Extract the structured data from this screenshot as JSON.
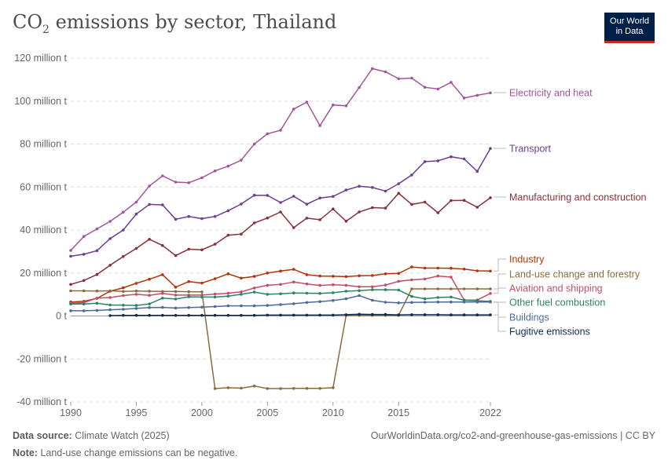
{
  "header": {
    "title_main": "CO",
    "title_sub": "2",
    "title_rest": " emissions by sector, Thailand",
    "logo_line1": "Our World",
    "logo_line2": "in Data"
  },
  "footer": {
    "source_label": "Data source:",
    "source_value": "Climate Watch (2025)",
    "note_label": "Note:",
    "note_value": "Land-use change emissions can be negative.",
    "url_license": "OurWorldinData.org/co2-and-greenhouse-gas-emissions | CC BY"
  },
  "chart_data": {
    "type": "line",
    "title": "CO₂ emissions by sector, Thailand",
    "ylim": [
      -40,
      120
    ],
    "xlim": [
      1990,
      2022
    ],
    "y_ticks": [
      -40,
      -20,
      0,
      20,
      40,
      60,
      80,
      100,
      120
    ],
    "y_tick_labels": [
      "-40 million t",
      "-20 million t",
      "0 t",
      "20 million t",
      "40 million t",
      "60 million t",
      "80 million t",
      "100 million t",
      "120 million t"
    ],
    "x_ticks": [
      1990,
      1995,
      2000,
      2005,
      2010,
      2015,
      2022
    ],
    "x_tick_labels": [
      "1990",
      "1995",
      "2000",
      "2005",
      "2010",
      "2015",
      "2022"
    ],
    "grid": "horizontal dashed",
    "legend": "line-end labels on right",
    "series": [
      {
        "name": "Electricity and heat",
        "color": "#a2559c",
        "start": 1990,
        "values": [
          30.5,
          37,
          40.5,
          44,
          48.3,
          53,
          60.5,
          65.2,
          62.3,
          62,
          64.3,
          67.5,
          69.7,
          72.5,
          80,
          84.8,
          86.4,
          96.3,
          99.5,
          88.6,
          98.2,
          97.8,
          106.3,
          115.1,
          113.6,
          110.4,
          110.7,
          106.4,
          105.6,
          108.7,
          101.4,
          102.7,
          103.8
        ]
      },
      {
        "name": "Transport",
        "color": "#6d3e91",
        "start": 1990,
        "values": [
          27.8,
          28.7,
          30.4,
          36,
          40,
          47.4,
          51.9,
          51.7,
          45,
          46.3,
          45.3,
          46.3,
          49,
          52.1,
          56.2,
          56.1,
          52.8,
          55.7,
          52,
          54.9,
          55.6,
          58.6,
          60.4,
          59.8,
          58.1,
          61.5,
          65.6,
          71.8,
          72.2,
          74.1,
          73.1,
          67.3,
          77.9
        ]
      },
      {
        "name": "Manufacturing and construction",
        "color": "#883039",
        "start": 1990,
        "values": [
          14.7,
          16.5,
          19.3,
          23.6,
          27.7,
          31.4,
          35.7,
          32.8,
          28.1,
          31.1,
          30.8,
          33.4,
          37.6,
          38.1,
          43.3,
          45.6,
          48.4,
          41.1,
          45.5,
          44.8,
          49.8,
          44.1,
          48.4,
          50.4,
          50.2,
          57.1,
          51.9,
          53,
          48,
          53.7,
          53.8,
          50.6,
          55
        ]
      },
      {
        "name": "Industry",
        "color": "#b13507",
        "start": 1990,
        "values": [
          6.5,
          6.8,
          8.2,
          11.5,
          13.1,
          15.2,
          17.1,
          19.2,
          13.4,
          16,
          15.3,
          17.3,
          19.6,
          17.6,
          18.4,
          20,
          20.9,
          21.7,
          19.2,
          18.6,
          18.5,
          18.3,
          18.7,
          18.8,
          19.6,
          19.8,
          22.8,
          22.3,
          22.3,
          22.2,
          21.8,
          21,
          20.9
        ]
      },
      {
        "name": "Land-use change and forestry",
        "color": "#8c6c3d",
        "start": 1990,
        "values": [
          11.7,
          11.7,
          11.6,
          11.7,
          11.4,
          11.6,
          11.5,
          11.4,
          11.4,
          11.3,
          11.2,
          -33.8,
          -33.4,
          -33.6,
          -32.6,
          -33.8,
          -33.8,
          -33.7,
          -33.7,
          -33.7,
          -33.4,
          0.3,
          0.3,
          0.3,
          0.3,
          0.3,
          12.6,
          12.6,
          12.6,
          12.6,
          12.6,
          12.6,
          12.6
        ]
      },
      {
        "name": "Aviation and shipping",
        "color": "#c15065",
        "start": 1990,
        "values": [
          5.9,
          6.2,
          8.3,
          8.6,
          9.5,
          10.1,
          9.6,
          10.5,
          9.7,
          9.7,
          9.7,
          10.2,
          10.6,
          11.2,
          13,
          14.3,
          14.7,
          15.8,
          14.9,
          14.2,
          14.5,
          14.3,
          13.6,
          13.6,
          14.4,
          16.1,
          16.8,
          17.2,
          18.6,
          18.1,
          7.4,
          7.4,
          10.5
        ]
      },
      {
        "name": "Other fuel combustion",
        "color": "#2c8465",
        "start": 1990,
        "values": [
          5.6,
          5.6,
          5.9,
          5.1,
          5,
          4.9,
          5.6,
          8.3,
          7.9,
          8.9,
          8.8,
          8.8,
          9.2,
          10.1,
          11.1,
          10.1,
          10.3,
          10.7,
          10.6,
          10.5,
          10.8,
          11.5,
          11.8,
          12.2,
          12.2,
          12.1,
          9.1,
          8,
          8.6,
          8.8,
          7.3,
          7.1,
          6.8
        ]
      },
      {
        "name": "Buildings",
        "color": "#4c6a9c",
        "start": 1990,
        "values": [
          2.4,
          2.4,
          2.6,
          2.9,
          3.1,
          3.5,
          3.9,
          4,
          3.7,
          3.9,
          4.1,
          4.4,
          4.7,
          4.7,
          4.7,
          4.9,
          5.3,
          5.7,
          6.3,
          6.7,
          7.2,
          8,
          9.5,
          7.3,
          6.4,
          6.1,
          6.3,
          6.4,
          6.5,
          6.5,
          6.5,
          6.5,
          6.5
        ]
      },
      {
        "name": "Fugitive emissions",
        "color": "#0f2c4d",
        "start": 1993,
        "values": [
          0.2,
          0.3,
          0.3,
          0.3,
          0.3,
          0.3,
          0.3,
          0.3,
          0.3,
          0.3,
          0.3,
          0.3,
          0.4,
          0.4,
          0.4,
          0.4,
          0.4,
          0.4,
          0.6,
          0.8,
          0.7,
          0.7,
          0.5,
          0.6,
          0.6,
          0.6,
          0.5,
          0.5,
          0.5,
          0.5
        ]
      }
    ]
  }
}
